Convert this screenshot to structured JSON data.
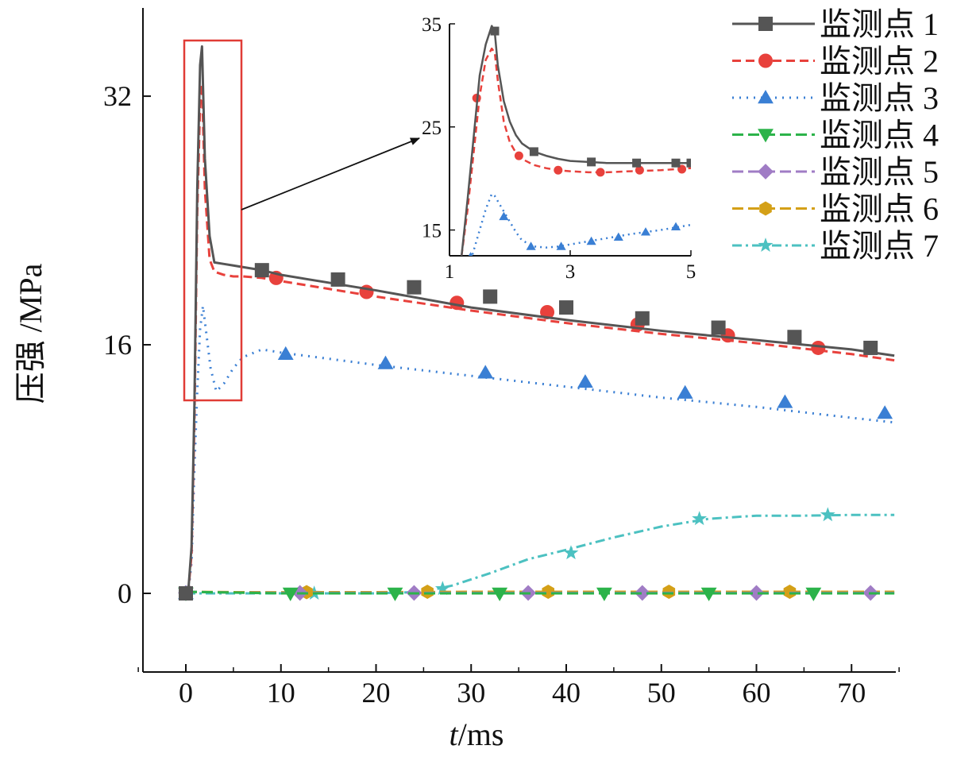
{
  "chart_data": {
    "type": "line",
    "title": "",
    "xlabel": "t / ms",
    "xlabel_var": "t",
    "xlabel_unit": "/ms",
    "ylabel": "压强 /MPa",
    "xlim": [
      -5,
      75
    ],
    "ylim": [
      -5,
      37.5
    ],
    "xticks": [
      "0",
      "10",
      "20",
      "30",
      "40",
      "50",
      "60",
      "70"
    ],
    "yticks": [
      "0",
      "16",
      "32"
    ],
    "grid": false,
    "legend_position": "top-right",
    "series": [
      {
        "name": "监测点 1",
        "color": "#555555",
        "dash": "none",
        "marker": "square",
        "x": [
          0,
          0.3,
          0.6,
          0.9,
          1.2,
          1.5,
          1.7,
          2.0,
          2.5,
          3,
          4,
          5,
          6,
          8,
          10,
          15,
          20,
          30,
          40,
          50,
          60,
          70,
          74.5
        ],
        "y": [
          0,
          0.5,
          3,
          12,
          26,
          34,
          35.2,
          28,
          23,
          21.3,
          21.2,
          21.1,
          21.0,
          20.8,
          20.5,
          20.0,
          19.5,
          18.4,
          17.6,
          16.9,
          16.3,
          15.7,
          15.3
        ],
        "marker_x": [
          0,
          8,
          16,
          24,
          32,
          40,
          48,
          56,
          64,
          72
        ],
        "marker_y": [
          0,
          20.8,
          20.2,
          19.7,
          19.1,
          18.4,
          17.7,
          17.1,
          16.5,
          15.8
        ]
      },
      {
        "name": "监测点 2",
        "color": "#e8413c",
        "dash": "11,6",
        "marker": "circle",
        "x": [
          0,
          0.3,
          0.6,
          0.9,
          1.2,
          1.5,
          1.7,
          2.0,
          2.5,
          3,
          4,
          5,
          6,
          8,
          10,
          15,
          20,
          30,
          40,
          50,
          60,
          70,
          74.5
        ],
        "y": [
          0,
          0.4,
          2.5,
          11,
          24.5,
          31.5,
          32.8,
          26,
          21.5,
          20.7,
          20.5,
          20.4,
          20.4,
          20.3,
          20.1,
          19.6,
          19.1,
          18.2,
          17.4,
          16.7,
          16.1,
          15.4,
          15.0
        ],
        "marker_x": [
          0,
          9.5,
          19,
          28.5,
          38,
          47.5,
          57,
          66.5
        ],
        "marker_y": [
          0,
          20.3,
          19.4,
          18.7,
          18.1,
          17.3,
          16.6,
          15.8
        ]
      },
      {
        "name": "监测点 3",
        "color": "#3a7fd4",
        "dash": "2,7",
        "marker": "triangle-up",
        "x": [
          0,
          0.3,
          0.6,
          0.9,
          1.2,
          1.5,
          1.8,
          2.2,
          2.6,
          3.2,
          4,
          5,
          6,
          8,
          10,
          15,
          20,
          30,
          40,
          50,
          60,
          70,
          74.5
        ],
        "y": [
          0,
          0.3,
          2,
          8,
          13,
          17,
          18.5,
          16.5,
          14.5,
          13,
          13.5,
          14.5,
          15.2,
          15.7,
          15.5,
          15.1,
          14.7,
          14.0,
          13.3,
          12.6,
          12.0,
          11.3,
          11.0
        ],
        "marker_x": [
          0,
          10.5,
          21,
          31.5,
          42,
          52.5,
          63,
          73.5
        ],
        "marker_y": [
          0,
          15.4,
          14.8,
          14.2,
          13.6,
          12.9,
          12.3,
          11.6
        ]
      },
      {
        "name": "监测点 4",
        "color": "#2cb34a",
        "dash": "14,6",
        "marker": "triangle-down",
        "x": [
          0,
          5,
          10,
          20,
          30,
          40,
          50,
          60,
          70,
          74.5
        ],
        "y": [
          0.1,
          0.05,
          0,
          0,
          0,
          0,
          0,
          0,
          0,
          0
        ],
        "marker_x": [
          0,
          11,
          22,
          33,
          44,
          55,
          66
        ],
        "marker_y": [
          0,
          0,
          0,
          0,
          0,
          0,
          0
        ]
      },
      {
        "name": "监测点 5",
        "color": "#a07cc5",
        "dash": "14,6",
        "marker": "diamond",
        "x": [
          0,
          5,
          10,
          20,
          30,
          40,
          50,
          60,
          70,
          74.5
        ],
        "y": [
          0.1,
          0.05,
          0.03,
          0.03,
          0.03,
          0.03,
          0.03,
          0.03,
          0.03,
          0.03
        ],
        "marker_x": [
          0,
          12,
          24,
          36,
          48,
          60,
          72
        ],
        "marker_y": [
          0.03,
          0.03,
          0.03,
          0.03,
          0.03,
          0.03,
          0.03
        ]
      },
      {
        "name": "监测点 6",
        "color": "#d4a017",
        "dash": "14,6",
        "marker": "hexagon",
        "x": [
          0,
          5,
          10,
          20,
          30,
          40,
          50,
          60,
          70,
          74.5
        ],
        "y": [
          0.1,
          0.08,
          0.07,
          0.08,
          0.1,
          0.1,
          0.1,
          0.1,
          0.1,
          0.1
        ],
        "marker_x": [
          0,
          12.7,
          25.4,
          38.1,
          50.8,
          63.5
        ],
        "marker_y": [
          0.05,
          0.08,
          0.1,
          0.1,
          0.1,
          0.1
        ]
      },
      {
        "name": "监测点 7",
        "color": "#4cc1c1",
        "dash": "12,5,3,5",
        "marker": "star",
        "x": [
          0,
          5,
          10,
          15,
          20,
          25,
          28,
          32,
          36,
          40,
          45,
          50,
          55,
          60,
          65,
          70,
          74.5
        ],
        "y": [
          0,
          0,
          0,
          0,
          0,
          0.1,
          0.5,
          1.3,
          2.2,
          2.8,
          3.6,
          4.3,
          4.8,
          5.0,
          5.0,
          5.05,
          5.05
        ],
        "marker_x": [
          0,
          13.5,
          27,
          40.5,
          54,
          67.5
        ],
        "marker_y": [
          0,
          0,
          0.3,
          2.6,
          4.8,
          5.05
        ]
      }
    ],
    "inset": {
      "xlim": [
        1,
        5
      ],
      "ylim": [
        12.5,
        35
      ],
      "xticks": [
        "1",
        "3",
        "5"
      ],
      "yticks": [
        "15",
        "25",
        "35"
      ],
      "series": [
        {
          "name": "监测点 1",
          "x": [
            1.2,
            1.3,
            1.4,
            1.5,
            1.6,
            1.7,
            1.75,
            1.8,
            1.9,
            2.0,
            2.1,
            2.2,
            2.4,
            2.6,
            2.8,
            3.0,
            3.3,
            3.6,
            4.0,
            4.5,
            5.0
          ],
          "y": [
            12.5,
            18,
            24,
            30,
            33,
            34.8,
            34.2,
            31,
            27.5,
            25.5,
            24.2,
            23.4,
            22.6,
            22.2,
            21.9,
            21.7,
            21.6,
            21.5,
            21.5,
            21.5,
            21.5
          ],
          "marker_x": [
            1.75,
            2.4,
            3.35,
            4.1,
            4.75,
            5.0
          ],
          "marker_y": [
            34.3,
            22.6,
            21.6,
            21.5,
            21.5,
            21.5
          ]
        },
        {
          "name": "监测点 2",
          "x": [
            1.2,
            1.3,
            1.4,
            1.5,
            1.6,
            1.7,
            1.75,
            1.8,
            1.9,
            2.0,
            2.1,
            2.2,
            2.4,
            2.6,
            2.8,
            3.0,
            3.3,
            3.6,
            4.0,
            4.5,
            5.0
          ],
          "y": [
            12.5,
            17,
            22.5,
            28,
            31.5,
            32.6,
            32.2,
            29.5,
            25.5,
            23.5,
            22.5,
            21.9,
            21.3,
            21.0,
            20.8,
            20.7,
            20.6,
            20.6,
            20.7,
            20.8,
            21.0
          ],
          "marker_x": [
            1.45,
            2.15,
            2.8,
            3.5,
            4.15,
            4.85
          ],
          "marker_y": [
            27.8,
            22.2,
            20.8,
            20.6,
            20.8,
            20.9
          ]
        },
        {
          "name": "监测点 3",
          "x": [
            1.2,
            1.3,
            1.4,
            1.5,
            1.6,
            1.7,
            1.75,
            1.8,
            1.9,
            2.0,
            2.1,
            2.2,
            2.4,
            2.6,
            2.8,
            3.0,
            3.3,
            3.6,
            4.0,
            4.5,
            5.0
          ],
          "y": [
            9,
            11,
            13,
            15,
            17,
            18.5,
            18.3,
            17.8,
            16.8,
            15.8,
            14.8,
            14.0,
            13.4,
            13.3,
            13.4,
            13.6,
            13.9,
            14.2,
            14.6,
            15.0,
            15.5
          ],
          "marker_x": [
            1.35,
            1.9,
            2.35,
            2.85,
            3.35,
            3.8,
            4.25,
            4.75
          ],
          "marker_y": [
            12.4,
            16.3,
            13.4,
            13.4,
            13.9,
            14.3,
            14.8,
            15.3
          ]
        }
      ]
    }
  }
}
